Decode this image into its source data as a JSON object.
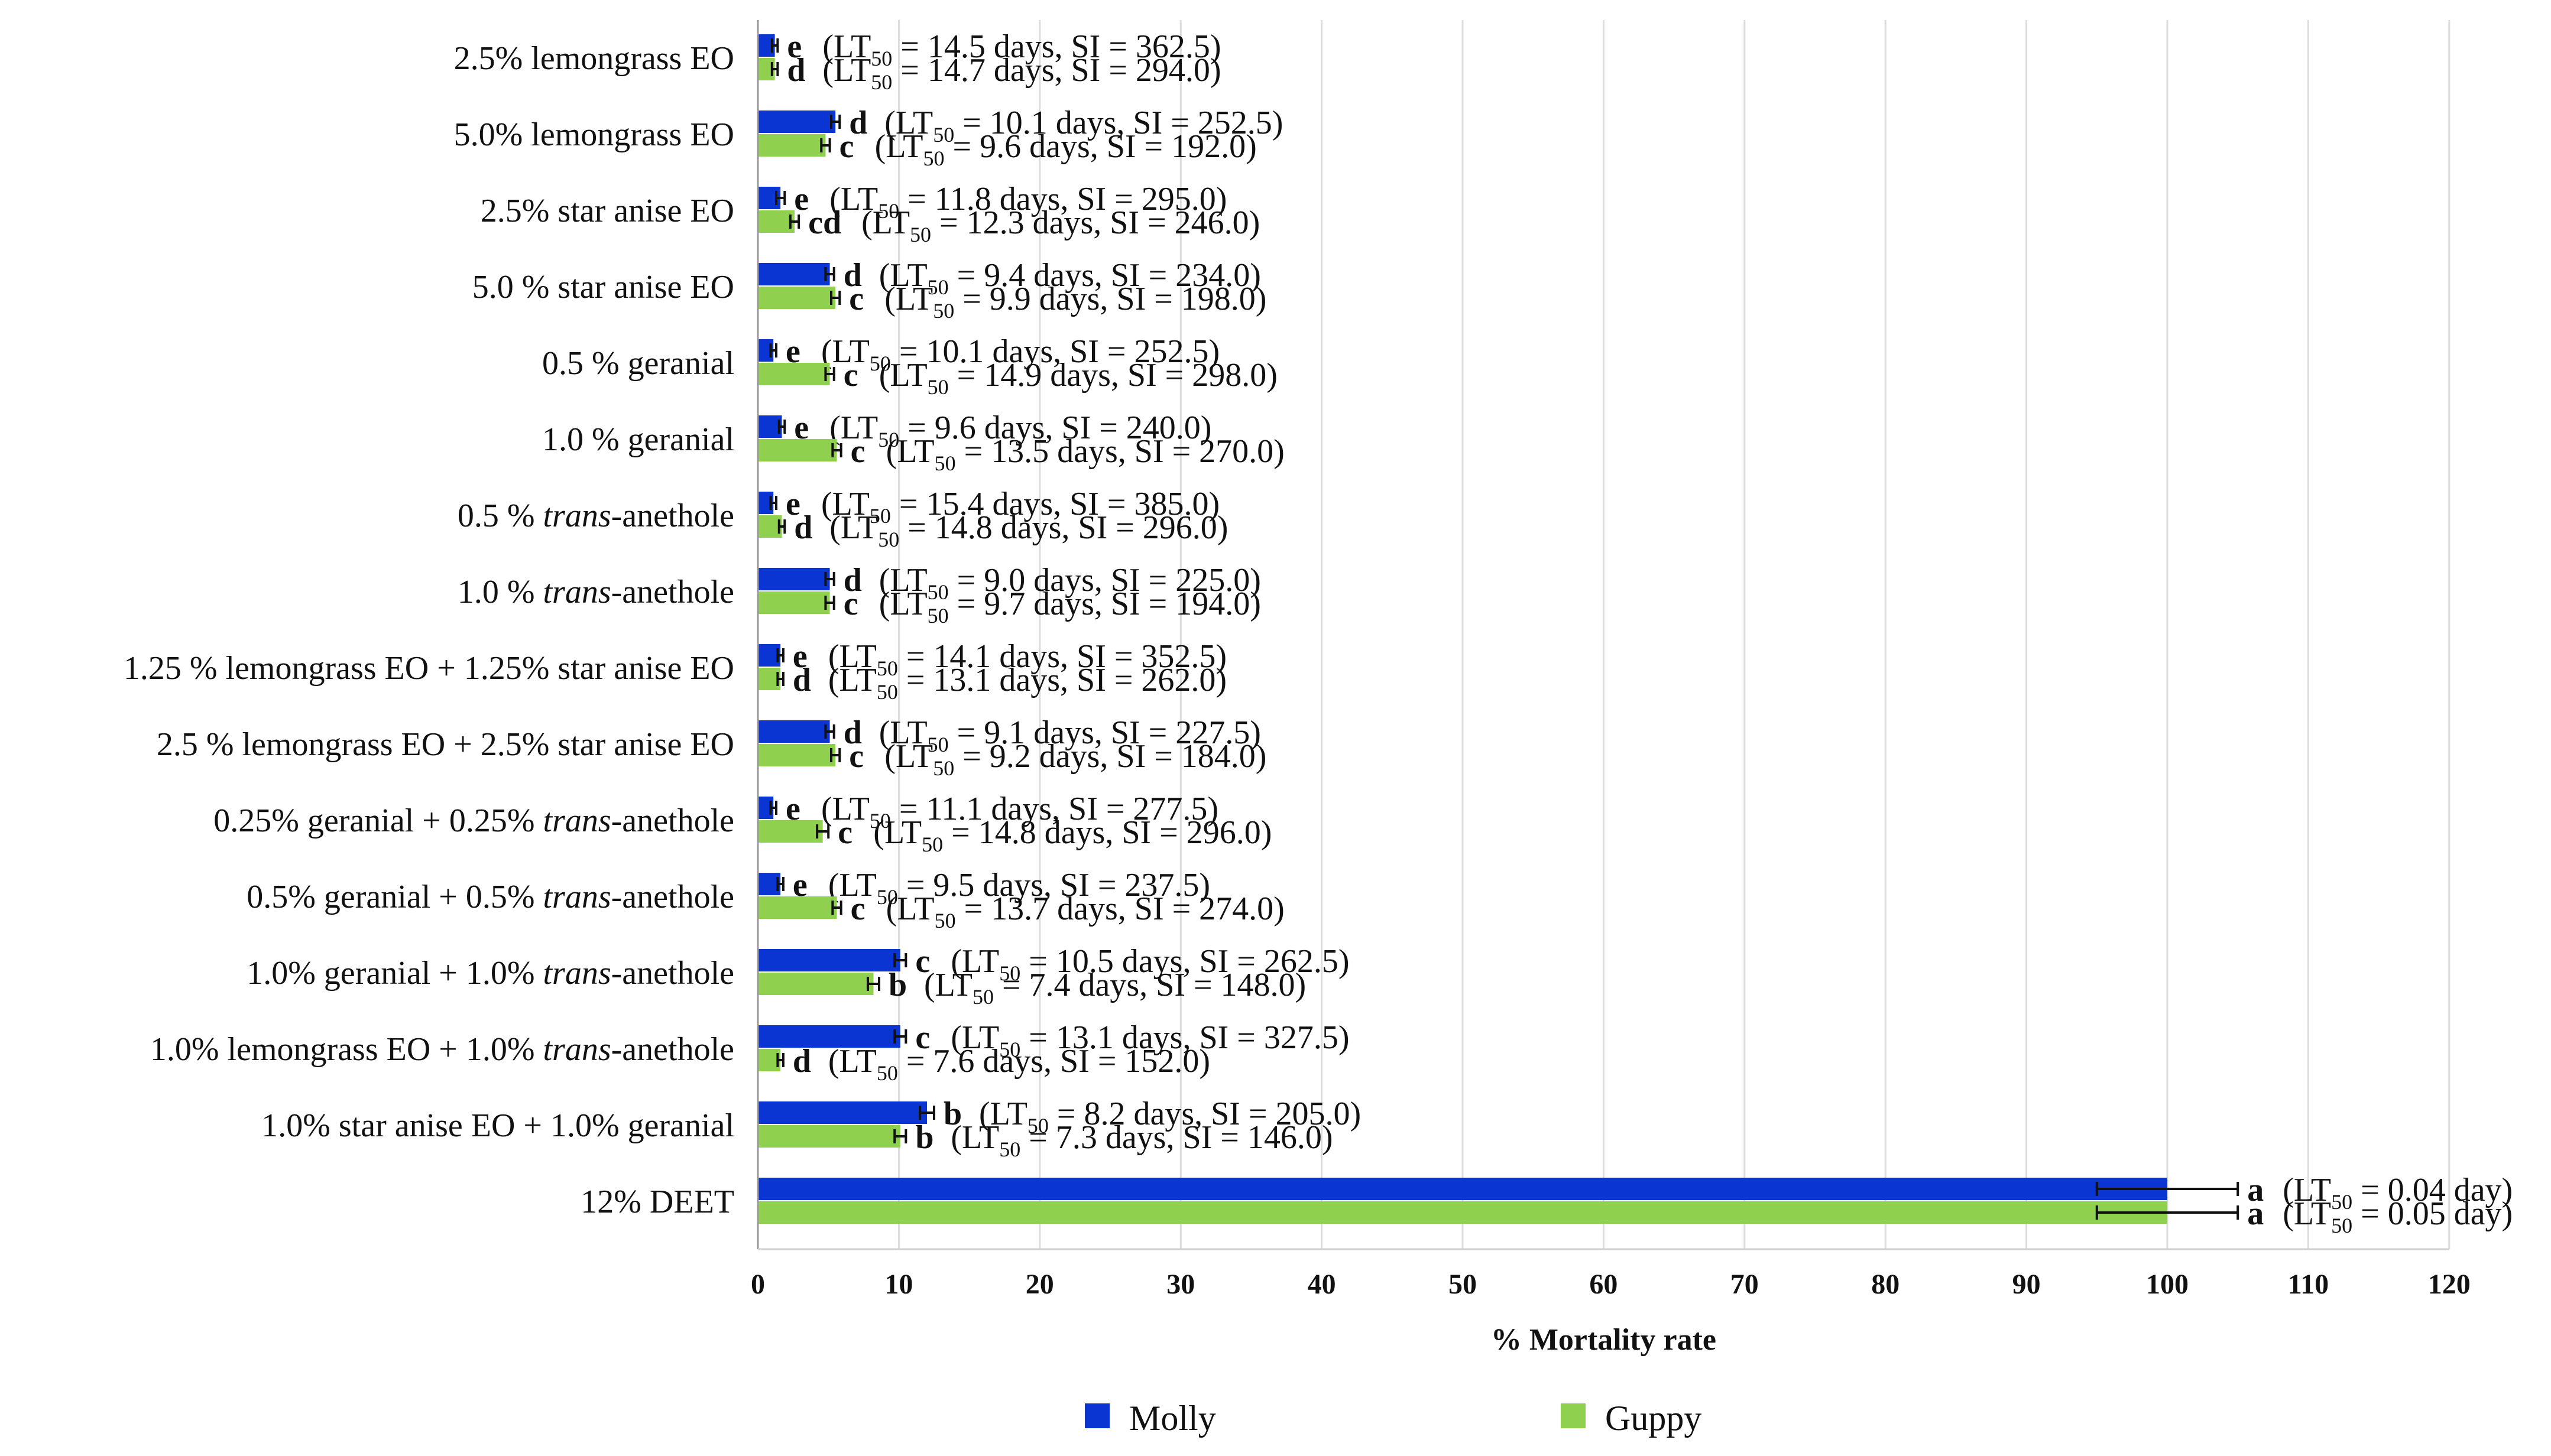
{
  "chart_data": {
    "type": "bar",
    "orientation": "horizontal",
    "xlabel": "% Mortality rate",
    "xlim": [
      0,
      120
    ],
    "xticks": [
      0,
      10,
      20,
      30,
      40,
      50,
      60,
      70,
      80,
      90,
      100,
      110,
      120
    ],
    "grid": "vertical",
    "legend_position": "bottom",
    "series": [
      {
        "name": "Molly",
        "color": "#0b35d3"
      },
      {
        "name": "Guppy",
        "color": "#8fd14f"
      }
    ],
    "categories": [
      {
        "label": [
          "2.5% lemongrass EO"
        ],
        "bars": [
          {
            "value": 1.2,
            "err": 0.2,
            "letter": "e",
            "annotation": [
              "(LT",
              "50",
              " = 14.5 days, SI = 362.5)"
            ]
          },
          {
            "value": 1.2,
            "err": 0.2,
            "letter": "d",
            "annotation": [
              "(LT",
              "50",
              " = 14.7 days, SI = 294.0)"
            ]
          }
        ]
      },
      {
        "label": [
          "5.0% lemongrass EO"
        ],
        "bars": [
          {
            "value": 5.5,
            "err": 0.3,
            "letter": "d",
            "annotation": [
              "(LT",
              "50",
              " = 10.1 days, SI = 252.5)"
            ]
          },
          {
            "value": 4.8,
            "err": 0.3,
            "letter": "c",
            "annotation": [
              "(LT",
              "50",
              " = 9.6 days, SI = 192.0)"
            ]
          }
        ]
      },
      {
        "label": [
          "2.5% star anise EO"
        ],
        "bars": [
          {
            "value": 1.6,
            "err": 0.3,
            "letter": "e",
            "annotation": [
              "(LT",
              "50",
              " = 11.8 days, SI = 295.0)"
            ]
          },
          {
            "value": 2.6,
            "err": 0.3,
            "letter": "cd",
            "annotation": [
              "(LT",
              "50",
              " = 12.3 days, SI = 246.0)"
            ]
          }
        ]
      },
      {
        "label": [
          "5.0 % star anise EO"
        ],
        "bars": [
          {
            "value": 5.1,
            "err": 0.3,
            "letter": "d",
            "annotation": [
              "(LT",
              "50",
              " = 9.4 days, SI = 234.0)"
            ]
          },
          {
            "value": 5.5,
            "err": 0.3,
            "letter": "c",
            "annotation": [
              "(LT",
              "50",
              " = 9.9 days, SI = 198.0)"
            ]
          }
        ]
      },
      {
        "label": [
          "0.5 % geranial"
        ],
        "bars": [
          {
            "value": 1.1,
            "err": 0.2,
            "letter": "e",
            "annotation": [
              "(LT",
              "50",
              " = 10.1 days, SI = 252.5)"
            ]
          },
          {
            "value": 5.1,
            "err": 0.3,
            "letter": "c",
            "annotation": [
              "(LT",
              "50",
              " = 14.9 days, SI = 298.0)"
            ]
          }
        ]
      },
      {
        "label": [
          "1.0 % geranial"
        ],
        "bars": [
          {
            "value": 1.7,
            "err": 0.2,
            "letter": "e",
            "annotation": [
              "(LT",
              "50",
              " = 9.6 days, SI = 240.0)"
            ]
          },
          {
            "value": 5.6,
            "err": 0.3,
            "letter": "c",
            "annotation": [
              "(LT",
              "50",
              " = 13.5 days, SI = 270.0)"
            ]
          }
        ]
      },
      {
        "label": [
          "0.5 % ",
          {
            "i": "trans"
          },
          "-anethole"
        ],
        "bars": [
          {
            "value": 1.1,
            "err": 0.2,
            "letter": "e",
            "annotation": [
              "(LT",
              "50",
              " = 15.4 days, SI = 385.0)"
            ]
          },
          {
            "value": 1.7,
            "err": 0.2,
            "letter": "d",
            "annotation": [
              "(LT",
              "50",
              " = 14.8 days, SI = 296.0)"
            ]
          }
        ]
      },
      {
        "label": [
          "1.0 % ",
          {
            "i": "trans"
          },
          "-anethole"
        ],
        "bars": [
          {
            "value": 5.1,
            "err": 0.3,
            "letter": "d",
            "annotation": [
              "(LT",
              "50",
              " = 9.0 days, SI = 225.0)"
            ]
          },
          {
            "value": 5.1,
            "err": 0.3,
            "letter": "c",
            "annotation": [
              "(LT",
              "50",
              " = 9.7 days, SI = 194.0)"
            ]
          }
        ]
      },
      {
        "label": [
          "1.25 % lemongrass EO  + 1.25% star anise EO"
        ],
        "bars": [
          {
            "value": 1.6,
            "err": 0.2,
            "letter": "e",
            "annotation": [
              "(LT",
              "50",
              " = 14.1 days, SI = 352.5)"
            ]
          },
          {
            "value": 1.6,
            "err": 0.2,
            "letter": "d",
            "annotation": [
              "(LT",
              "50",
              " = 13.1 days, SI = 262.0)"
            ]
          }
        ]
      },
      {
        "label": [
          "2.5 % lemongrass EO + 2.5% star anise EO"
        ],
        "bars": [
          {
            "value": 5.1,
            "err": 0.3,
            "letter": "d",
            "annotation": [
              "(LT",
              "50",
              " = 9.1 days, SI = 227.5)"
            ]
          },
          {
            "value": 5.5,
            "err": 0.3,
            "letter": "c",
            "annotation": [
              "(LT",
              "50",
              " = 9.2 days, SI = 184.0)"
            ]
          }
        ]
      },
      {
        "label": [
          "0.25% geranial + 0.25% ",
          {
            "i": "trans"
          },
          "-anethole"
        ],
        "bars": [
          {
            "value": 1.1,
            "err": 0.2,
            "letter": "e",
            "annotation": [
              "(LT",
              "50",
              " = 11.1 days, SI = 277.5)"
            ]
          },
          {
            "value": 4.6,
            "err": 0.4,
            "letter": "c",
            "annotation": [
              "(LT",
              "50",
              " = 14.8 days, SI = 296.0)"
            ]
          }
        ]
      },
      {
        "label": [
          "0.5% geranial + 0.5% ",
          {
            "i": "trans"
          },
          "-anethole"
        ],
        "bars": [
          {
            "value": 1.6,
            "err": 0.2,
            "letter": "e",
            "annotation": [
              "(LT",
              "50",
              " = 9.5 days, SI = 237.5)"
            ]
          },
          {
            "value": 5.6,
            "err": 0.3,
            "letter": "c",
            "annotation": [
              "(LT",
              "50",
              " = 13.7 days, SI = 274.0)"
            ]
          }
        ]
      },
      {
        "label": [
          "1.0% geranial + 1.0% ",
          {
            "i": "trans"
          },
          "-anethole"
        ],
        "bars": [
          {
            "value": 10.1,
            "err": 0.4,
            "letter": "c",
            "annotation": [
              "(LT",
              "50",
              " = 10.5 days, SI = 262.5)"
            ]
          },
          {
            "value": 8.2,
            "err": 0.4,
            "letter": "b",
            "annotation": [
              "(LT",
              "50",
              " = 7.4 days, SI = 148.0)"
            ]
          }
        ]
      },
      {
        "label": [
          "1.0% lemongrass EO + 1.0% ",
          {
            "i": "trans"
          },
          "-anethole"
        ],
        "bars": [
          {
            "value": 10.1,
            "err": 0.4,
            "letter": "c",
            "annotation": [
              "(LT",
              "50",
              " = 13.1 days, SI = 327.5)"
            ]
          },
          {
            "value": 1.6,
            "err": 0.2,
            "letter": "d",
            "annotation": [
              "(LT",
              "50",
              " = 7.6 days, SI = 152.0)"
            ]
          }
        ]
      },
      {
        "label": [
          "1.0% star anise EO + 1.0% geranial"
        ],
        "bars": [
          {
            "value": 12.0,
            "err": 0.5,
            "letter": "b",
            "annotation": [
              "(LT",
              "50",
              " = 8.2 days, SI = 205.0)"
            ]
          },
          {
            "value": 10.1,
            "err": 0.4,
            "letter": "b",
            "annotation": [
              "(LT",
              "50",
              " = 7.3 days, SI = 146.0)"
            ]
          }
        ]
      },
      {
        "label": [
          "12% DEET"
        ],
        "bars": [
          {
            "value": 100,
            "err": 5,
            "letter": "a",
            "annotation": [
              "(LT",
              "50",
              " = 0.04 day)"
            ]
          },
          {
            "value": 100,
            "err": 5,
            "letter": "a",
            "annotation": [
              "(LT",
              "50",
              " = 0.05 day)"
            ]
          }
        ]
      }
    ]
  }
}
